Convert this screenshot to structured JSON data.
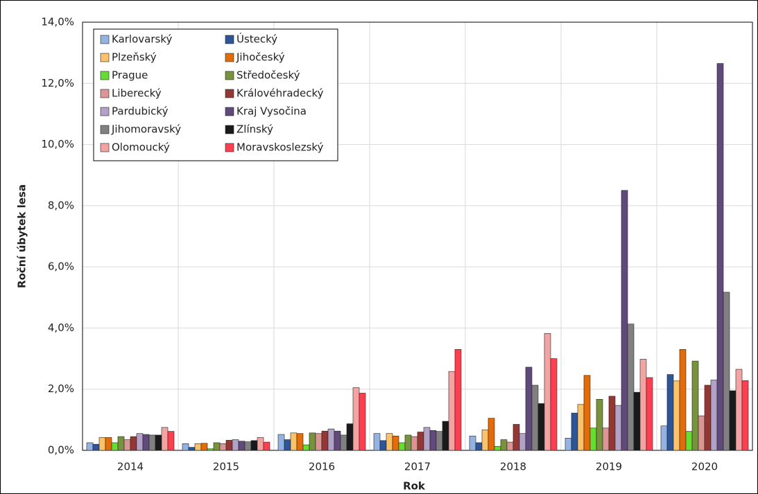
{
  "chart_data": {
    "type": "bar",
    "x_label": "Rok",
    "y_label": "Roční úbytek lesa",
    "categories": [
      "2014",
      "2015",
      "2016",
      "2017",
      "2018",
      "2019",
      "2020"
    ],
    "ylim": [
      0,
      14
    ],
    "yticks": [
      {
        "value": 0,
        "label": "0,0%"
      },
      {
        "value": 2,
        "label": "2,0%"
      },
      {
        "value": 4,
        "label": "4,0%"
      },
      {
        "value": 6,
        "label": "6,0%"
      },
      {
        "value": 8,
        "label": "8,0%"
      },
      {
        "value": 10,
        "label": "10,0%"
      },
      {
        "value": 12,
        "label": "12,0%"
      },
      {
        "value": 14,
        "label": "14,0%"
      }
    ],
    "grid": true,
    "legend": "top-left",
    "series": [
      {
        "name": "Karlovarský",
        "color": "#95b3e0",
        "values": [
          0.25,
          0.22,
          0.52,
          0.55,
          0.47,
          0.4,
          0.8
        ]
      },
      {
        "name": "Ústecký",
        "color": "#2e5597",
        "values": [
          0.2,
          0.1,
          0.35,
          0.32,
          0.25,
          1.22,
          2.48
        ]
      },
      {
        "name": "Plzeňský",
        "color": "#f9c26b",
        "values": [
          0.42,
          0.22,
          0.57,
          0.55,
          0.67,
          1.5,
          2.27
        ]
      },
      {
        "name": "Jihočeský",
        "color": "#e36c09",
        "values": [
          0.42,
          0.23,
          0.55,
          0.47,
          1.05,
          2.45,
          3.3
        ]
      },
      {
        "name": "Prague",
        "color": "#66dd33",
        "values": [
          0.25,
          0.05,
          0.18,
          0.25,
          0.13,
          0.73,
          0.62
        ]
      },
      {
        "name": "Středočeský",
        "color": "#77933c",
        "values": [
          0.45,
          0.25,
          0.57,
          0.5,
          0.35,
          1.67,
          2.92
        ]
      },
      {
        "name": "Liberecký",
        "color": "#d99694",
        "values": [
          0.35,
          0.22,
          0.55,
          0.45,
          0.27,
          0.73,
          1.13
        ]
      },
      {
        "name": "Královéhradecký",
        "color": "#953735",
        "values": [
          0.45,
          0.33,
          0.63,
          0.6,
          0.85,
          1.77,
          2.13
        ]
      },
      {
        "name": "Pardubický",
        "color": "#b3a2c7",
        "values": [
          0.55,
          0.35,
          0.7,
          0.75,
          0.55,
          1.47,
          2.3
        ]
      },
      {
        "name": "Kraj Vysočina",
        "color": "#604a7b",
        "values": [
          0.52,
          0.3,
          0.63,
          0.65,
          2.72,
          8.5,
          12.65
        ]
      },
      {
        "name": "Jihomoravský",
        "color": "#808080",
        "values": [
          0.5,
          0.28,
          0.5,
          0.62,
          2.13,
          4.13,
          5.17
        ]
      },
      {
        "name": "Zlínský",
        "color": "#1a1a1a",
        "values": [
          0.5,
          0.32,
          0.87,
          0.95,
          1.53,
          1.9,
          1.95
        ]
      },
      {
        "name": "Olomoucký",
        "color": "#f4a3a3",
        "values": [
          0.75,
          0.42,
          2.05,
          2.58,
          3.82,
          2.98,
          2.65
        ]
      },
      {
        "name": "Moravskoslezský",
        "color": "#ff3f4f",
        "values": [
          0.62,
          0.27,
          1.87,
          3.3,
          3.0,
          2.38,
          2.28
        ]
      }
    ]
  }
}
